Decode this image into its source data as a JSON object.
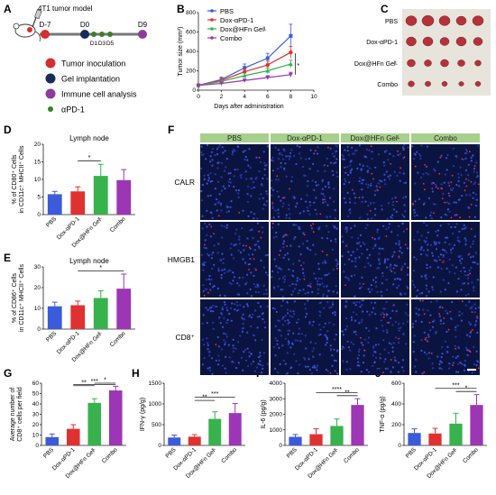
{
  "panels": {
    "A": {
      "letter": "A",
      "title": "4T1 tumor model",
      "timeline": [
        {
          "label": "D-7",
          "color": "#d32f2f"
        },
        {
          "label": "D0",
          "color": "#1a2a5a"
        },
        {
          "label": "D1",
          "color": "#3a7d2a"
        },
        {
          "label": "D3",
          "color": "#3a7d2a"
        },
        {
          "label": "D5",
          "color": "#3a7d2a"
        },
        {
          "label": "D9",
          "color": "#8e3a9e"
        }
      ],
      "legend": [
        {
          "label": "Tumor inoculation",
          "color": "#d32f2f"
        },
        {
          "label": "Gel implantation",
          "color": "#1a2a5a"
        },
        {
          "label": "Immune cell analysis",
          "color": "#8e3a9e"
        },
        {
          "label": "αPD-1",
          "color": "#3a7d2a"
        }
      ]
    },
    "B": {
      "letter": "B",
      "ylabel": "Tumor size (mm³)",
      "xlabel": "Days after administration"
    },
    "C": {
      "letter": "C",
      "rows": [
        "PBS",
        "Dox-αPD-1",
        "Dox@HFn Gelᴸ",
        "Combo"
      ],
      "tumor_color": "#b5323a"
    },
    "D": {
      "letter": "D",
      "subtitle": "Lymph node",
      "ylabel": "% of CD80⁺ Cells in CD11c⁺ MHCII⁺ Cells"
    },
    "E": {
      "letter": "E",
      "subtitle": "Lymph node",
      "ylabel": "% of CD86⁺ Cells in CD11c⁺ MHCII⁺ Cells"
    },
    "F": {
      "letter": "F",
      "cols": [
        "PBS",
        "Dox-αPD-1",
        "Dox@HFn Gelᴸ",
        "Combo"
      ],
      "rows": [
        "CALR",
        "HMGB1",
        "CD8⁺"
      ]
    },
    "G": {
      "letter": "G",
      "ylabel": "Average number of CD8⁺ cells per field"
    },
    "H": {
      "letter": "H",
      "ylabel": "IFN-γ (pg/g)"
    },
    "I": {
      "letter": "I",
      "ylabel": "IL-6 (pg/g)"
    },
    "J": {
      "letter": "J",
      "ylabel": "TNF-α (pg/g)"
    }
  },
  "groups": [
    "PBS",
    "Dox-αPD-1",
    "Dox@HFn Gelᴸ",
    "Combo"
  ],
  "group_colors": [
    "#3b5bdb",
    "#e03131",
    "#37b24d",
    "#9c36b5"
  ],
  "chart_data": [
    {
      "panel": "B",
      "type": "line",
      "x": [
        0,
        2,
        4,
        6,
        8
      ],
      "xlim": [
        0,
        10
      ],
      "ylim": [
        0,
        800
      ],
      "yticks": [
        0,
        200,
        400,
        600,
        800
      ],
      "xticks": [
        0,
        2,
        4,
        6,
        8,
        10
      ],
      "xlabel": "Days after administration",
      "ylabel": "Tumor size (mm³)",
      "legend": "top-left",
      "series": [
        {
          "name": "PBS",
          "values": [
            50,
            110,
            230,
            330,
            560
          ],
          "err": [
            10,
            25,
            40,
            50,
            120
          ],
          "marker": "square",
          "color": "#3b5bdb"
        },
        {
          "name": "Dox-αPD-1",
          "values": [
            50,
            100,
            190,
            260,
            390
          ],
          "err": [
            10,
            20,
            30,
            40,
            60
          ],
          "marker": "circle",
          "color": "#e03131"
        },
        {
          "name": "Dox@HFn Gelᴸ",
          "values": [
            50,
            90,
            150,
            200,
            270
          ],
          "err": [
            10,
            15,
            25,
            30,
            40
          ],
          "marker": "triangle",
          "color": "#37b24d"
        },
        {
          "name": "Combo",
          "values": [
            50,
            70,
            100,
            130,
            160
          ],
          "err": [
            10,
            10,
            15,
            20,
            25
          ],
          "marker": "triangle-down",
          "color": "#9c36b5"
        }
      ],
      "annotation": "*"
    },
    {
      "panel": "D",
      "type": "bar",
      "categories": [
        "PBS",
        "Dox-αPD-1",
        "Dox@HFn Gelᴸ",
        "Combo"
      ],
      "values": [
        5.8,
        6.6,
        11.0,
        9.8
      ],
      "err": [
        0.8,
        1.3,
        3.3,
        3.0
      ],
      "ylim": [
        0,
        20
      ],
      "yticks": [
        0,
        5,
        10,
        15,
        20
      ],
      "sig": [
        {
          "from": 1,
          "to": 2,
          "label": "*"
        }
      ]
    },
    {
      "panel": "E",
      "type": "bar",
      "categories": [
        "PBS",
        "Dox-αPD-1",
        "Dox@HFn Gelᴸ",
        "Combo"
      ],
      "values": [
        11,
        11.5,
        15,
        19.5
      ],
      "err": [
        2,
        2,
        3.5,
        7
      ],
      "ylim": [
        0,
        30
      ],
      "yticks": [
        0,
        10,
        20,
        30
      ],
      "sig": [
        {
          "from": 1,
          "to": 3,
          "label": "*"
        }
      ]
    },
    {
      "panel": "G",
      "type": "bar",
      "categories": [
        "PBS",
        "Dox-αPD-1",
        "Dox@HFn Gelᴸ",
        "Combo"
      ],
      "values": [
        8,
        16,
        41,
        53
      ],
      "err": [
        3,
        4,
        4,
        4
      ],
      "ylim": [
        0,
        60
      ],
      "yticks": [
        0,
        10,
        20,
        30,
        40,
        50,
        60
      ],
      "sig": [
        {
          "from": 2,
          "to": 3,
          "label": "*"
        },
        {
          "from": 1,
          "to": 2,
          "label": "**"
        },
        {
          "from": 1,
          "to": 3,
          "label": "***"
        }
      ]
    },
    {
      "panel": "H",
      "type": "bar",
      "categories": [
        "PBS",
        "Dox-αPD-1",
        "Dox@HFn Gelᴸ",
        "Combo"
      ],
      "values": [
        190,
        210,
        640,
        780
      ],
      "err": [
        60,
        50,
        170,
        230
      ],
      "ylim": [
        0,
        1500
      ],
      "yticks": [
        0,
        500,
        1000,
        1500
      ],
      "sig": [
        {
          "from": 1,
          "to": 2,
          "label": "**"
        },
        {
          "from": 1,
          "to": 3,
          "label": "***"
        }
      ]
    },
    {
      "panel": "I",
      "type": "bar",
      "categories": [
        "PBS",
        "Dox-αPD-1",
        "Dox@HFn Gelᴸ",
        "Combo"
      ],
      "values": [
        550,
        720,
        1250,
        2600
      ],
      "err": [
        150,
        350,
        450,
        400
      ],
      "ylim": [
        0,
        4000
      ],
      "yticks": [
        0,
        1000,
        2000,
        3000,
        4000
      ],
      "sig": [
        {
          "from": 2,
          "to": 3,
          "label": "**"
        },
        {
          "from": 1,
          "to": 3,
          "label": "****"
        }
      ]
    },
    {
      "panel": "J",
      "type": "bar",
      "categories": [
        "PBS",
        "Dox-αPD-1",
        "Dox@HFn Gelᴸ",
        "Combo"
      ],
      "values": [
        120,
        115,
        210,
        390
      ],
      "err": [
        40,
        50,
        100,
        100
      ],
      "ylim": [
        0,
        600
      ],
      "yticks": [
        0,
        200,
        400,
        600
      ],
      "sig": [
        {
          "from": 2,
          "to": 3,
          "label": "*"
        },
        {
          "from": 1,
          "to": 3,
          "label": "***"
        }
      ]
    }
  ]
}
